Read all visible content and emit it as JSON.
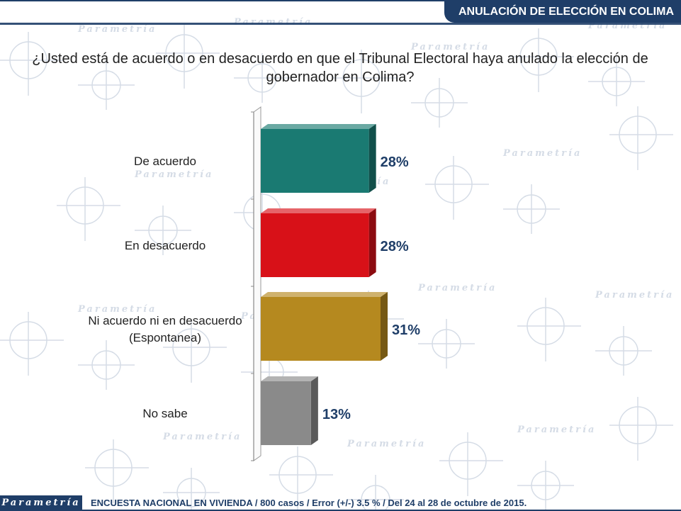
{
  "header": {
    "title": "ANULACIÓN DE ELECCIÓN EN COLIMA"
  },
  "question": "¿Usted está de acuerdo o en desacuerdo en que el Tribunal Electoral haya anulado la elección de gobernador en Colima?",
  "watermark": {
    "text": "Parametría"
  },
  "footer": {
    "logo": "Parametría",
    "note": "ENCUESTA NACIONAL EN VIVIENDA / 800 casos / Error (+/-) 3.5 % / Del 24 al 28 de octubre de 2015."
  },
  "chart_data": {
    "type": "bar",
    "orientation": "horizontal",
    "style": "3d",
    "categories": [
      [
        "De acuerdo"
      ],
      [
        "En desacuerdo"
      ],
      [
        "Ni acuerdo ni en desacuerdo",
        "(Espontanea)"
      ],
      [
        "No sabe"
      ]
    ],
    "values": [
      28,
      28,
      31,
      13
    ],
    "value_labels": [
      "28%",
      "28%",
      "31%",
      "13%"
    ],
    "colors": [
      "#1a7a72",
      "#d81118",
      "#b5891f",
      "#8a8a8a"
    ],
    "xlim": [
      0,
      31
    ],
    "grid": false
  },
  "colors": {
    "brand": "#1f3e68",
    "label": "#1f3e68"
  }
}
